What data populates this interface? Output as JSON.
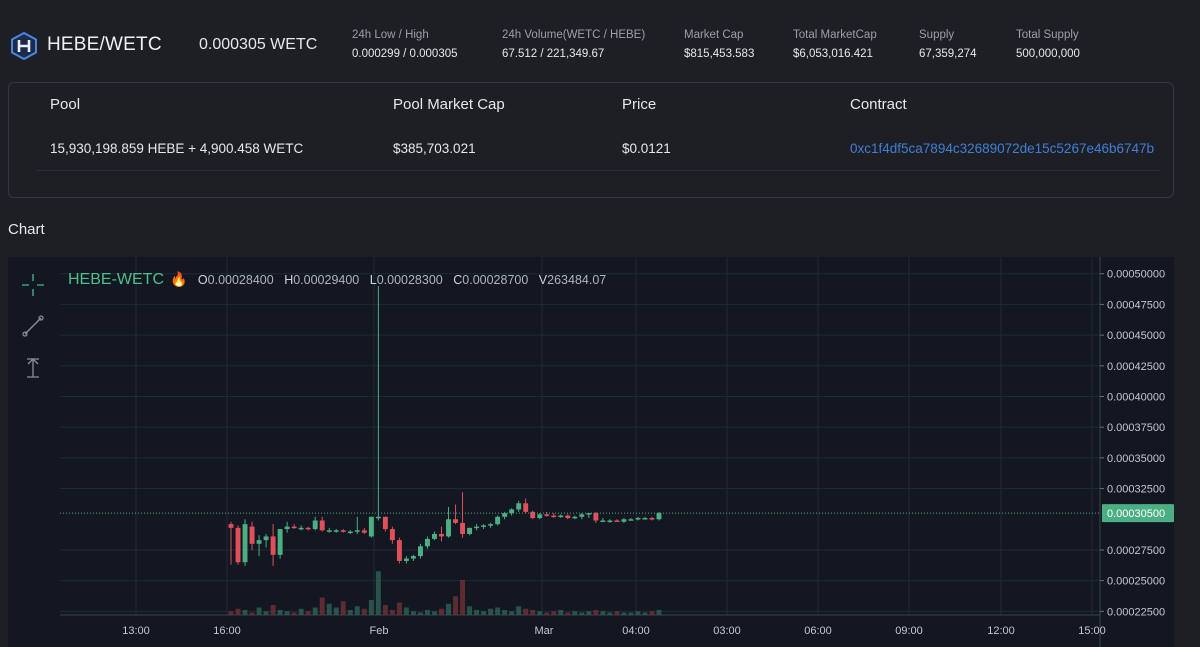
{
  "header": {
    "pair": "HEBE/WETC",
    "price": "0.000305 WETC",
    "stats": [
      {
        "label": "24h Low / High",
        "value": "0.000299 / 0.000305"
      },
      {
        "label": "24h Volume(WETC / HEBE)",
        "value": "67.512 / 221,349.67"
      },
      {
        "label": "Market Cap",
        "value": "$815,453.583"
      },
      {
        "label": "Total MarketCap",
        "value": "$6,053,016.421"
      },
      {
        "label": "Supply",
        "value": "67,359,274"
      },
      {
        "label": "Total Supply",
        "value": "500,000,000"
      }
    ]
  },
  "pool": {
    "headers": [
      "Pool",
      "Pool Market Cap",
      "Price",
      "Contract"
    ],
    "values": [
      "15,930,198.859 HEBE + 4,900.458 WETC",
      "$385,703.021",
      "$0.0121",
      "0xc1f4df5ca7894c32689072de15c5267e46b6747b"
    ]
  },
  "chart_section_title": "Chart",
  "legend": {
    "name": "HEBE-WETC",
    "icon": "fire-icon",
    "o_label": "O",
    "o": "0.00028400",
    "h_label": "H",
    "h": "0.00029400",
    "l_label": "L",
    "l": "0.00028300",
    "c_label": "C",
    "c": "0.00028700",
    "v_label": "V",
    "v": "263484.07"
  },
  "colors": {
    "up": "#4caf83",
    "down": "#e0505a",
    "accent": "#3f7fd8"
  },
  "chart_data": {
    "type": "candlestick",
    "y_ticks": [
      "0.00050000",
      "0.00047500",
      "0.00045000",
      "0.00042500",
      "0.00040000",
      "0.00037500",
      "0.00035000",
      "0.00032500",
      "0.00027500",
      "0.00025000",
      "0.00022500"
    ],
    "ylim": [
      0.000222,
      0.000512
    ],
    "x_ticks": [
      "13:00",
      "16:00",
      "Feb",
      "Mar",
      "04:00",
      "03:00",
      "06:00",
      "09:00",
      "12:00",
      "15:00"
    ],
    "last_price_label": "0.00030500",
    "last_price": 0.000305,
    "candles": [
      [
        0.000296,
        0.000298,
        0.000263,
        0.000293
      ],
      [
        0.000293,
        0.000295,
        0.000263,
        0.000265
      ],
      [
        0.000265,
        0.0003,
        0.000262,
        0.000296
      ],
      [
        0.000294,
        0.000298,
        0.000275,
        0.00028
      ],
      [
        0.00028,
        0.000287,
        0.00027,
        0.000283
      ],
      [
        0.000283,
        0.000288,
        0.000277,
        0.000286
      ],
      [
        0.000286,
        0.000296,
        0.000262,
        0.000271
      ],
      [
        0.000271,
        0.000292,
        0.000268,
        0.000292
      ],
      [
        0.000292,
        0.000298,
        0.000289,
        0.000294
      ],
      [
        0.000294,
        0.000296,
        0.000292,
        0.000293
      ],
      [
        0.000293,
        0.000295,
        0.000291,
        0.000293
      ],
      [
        0.000293,
        0.000294,
        0.000291,
        0.000292
      ],
      [
        0.000292,
        0.000302,
        0.000291,
        0.000299
      ],
      [
        0.000299,
        0.000302,
        0.00029,
        0.000291
      ],
      [
        0.000291,
        0.000293,
        0.000289,
        0.000291
      ],
      [
        0.000291,
        0.000292,
        0.000289,
        0.000291
      ],
      [
        0.000291,
        0.000292,
        0.000289,
        0.00029
      ],
      [
        0.00029,
        0.000291,
        0.000288,
        0.00029
      ],
      [
        0.00029,
        0.000302,
        0.000288,
        0.000291
      ],
      [
        0.000291,
        0.000293,
        0.000288,
        0.000289
      ],
      [
        0.000286,
        0.000302,
        0.000285,
        0.000302
      ],
      [
        0.000302,
        0.00049,
        0.000299,
        0.000302
      ],
      [
        0.000302,
        0.000302,
        0.00029,
        0.000292
      ],
      [
        0.000292,
        0.000294,
        0.00028,
        0.000283
      ],
      [
        0.000283,
        0.000285,
        0.000264,
        0.000266
      ],
      [
        0.000266,
        0.00027,
        0.000264,
        0.000268
      ],
      [
        0.000268,
        0.000271,
        0.000266,
        0.00027
      ],
      [
        0.00027,
        0.00028,
        0.000268,
        0.000278
      ],
      [
        0.000278,
        0.000286,
        0.000276,
        0.000284
      ],
      [
        0.000284,
        0.00029,
        0.000283,
        0.000288
      ],
      [
        0.000288,
        0.000294,
        0.000282,
        0.000286
      ],
      [
        0.000286,
        0.00031,
        0.000285,
        0.0003
      ],
      [
        0.0003,
        0.000312,
        0.000296,
        0.000297
      ],
      [
        0.000297,
        0.000322,
        0.000285,
        0.000288
      ],
      [
        0.000288,
        0.000293,
        0.000287,
        0.000293
      ],
      [
        0.000293,
        0.000296,
        0.000291,
        0.000294
      ],
      [
        0.000294,
        0.000296,
        0.000292,
        0.000295
      ],
      [
        0.000295,
        0.000297,
        0.000293,
        0.000296
      ],
      [
        0.000296,
        0.000303,
        0.000295,
        0.000302
      ],
      [
        0.000302,
        0.000306,
        0.0003,
        0.000305
      ],
      [
        0.000305,
        0.000309,
        0.000303,
        0.000308
      ],
      [
        0.000308,
        0.000315,
        0.000306,
        0.000313
      ],
      [
        0.000313,
        0.000317,
        0.000305,
        0.000306
      ],
      [
        0.000306,
        0.000307,
        0.0003,
        0.000301
      ],
      [
        0.000301,
        0.000305,
        0.0003,
        0.000304
      ],
      [
        0.000304,
        0.000306,
        0.000302,
        0.000303
      ],
      [
        0.000303,
        0.000305,
        0.000301,
        0.000302
      ],
      [
        0.000302,
        0.000304,
        0.000301,
        0.000303
      ],
      [
        0.000303,
        0.000304,
        0.0003,
        0.000301
      ],
      [
        0.000301,
        0.000303,
        0.0003,
        0.000302
      ],
      [
        0.000302,
        0.000305,
        0.0003,
        0.000304
      ],
      [
        0.000304,
        0.000305,
        0.000301,
        0.000305
      ],
      [
        0.000305,
        0.000306,
        0.000297,
        0.000299
      ],
      [
        0.000299,
        0.000301,
        0.000298,
        0.000299
      ],
      [
        0.000299,
        0.0003,
        0.000297,
        0.000299
      ],
      [
        0.000299,
        0.0003,
        0.000298,
        0.000298
      ],
      [
        0.000298,
        0.000301,
        0.000297,
        0.0003
      ],
      [
        0.0003,
        0.000301,
        0.000299,
        0.0003
      ],
      [
        0.0003,
        0.000302,
        0.000299,
        0.000301
      ],
      [
        0.000301,
        0.000302,
        0.0003,
        0.000301
      ],
      [
        0.000301,
        0.000302,
        0.000299,
        0.0003
      ],
      [
        0.0003,
        0.000306,
        0.000299,
        0.000305
      ]
    ],
    "volumes": [
      3,
      5,
      4,
      2,
      6,
      3,
      8,
      4,
      3,
      2,
      5,
      3,
      6,
      14,
      9,
      6,
      11,
      4,
      7,
      5,
      12,
      35,
      8,
      4,
      10,
      6,
      3,
      2,
      4,
      3,
      5,
      9,
      15,
      28,
      7,
      4,
      3,
      5,
      6,
      4,
      3,
      7,
      5,
      4,
      3,
      2,
      3,
      4,
      2,
      3,
      2,
      3,
      4,
      3,
      2,
      3,
      2,
      2,
      3,
      2,
      3,
      4
    ]
  }
}
